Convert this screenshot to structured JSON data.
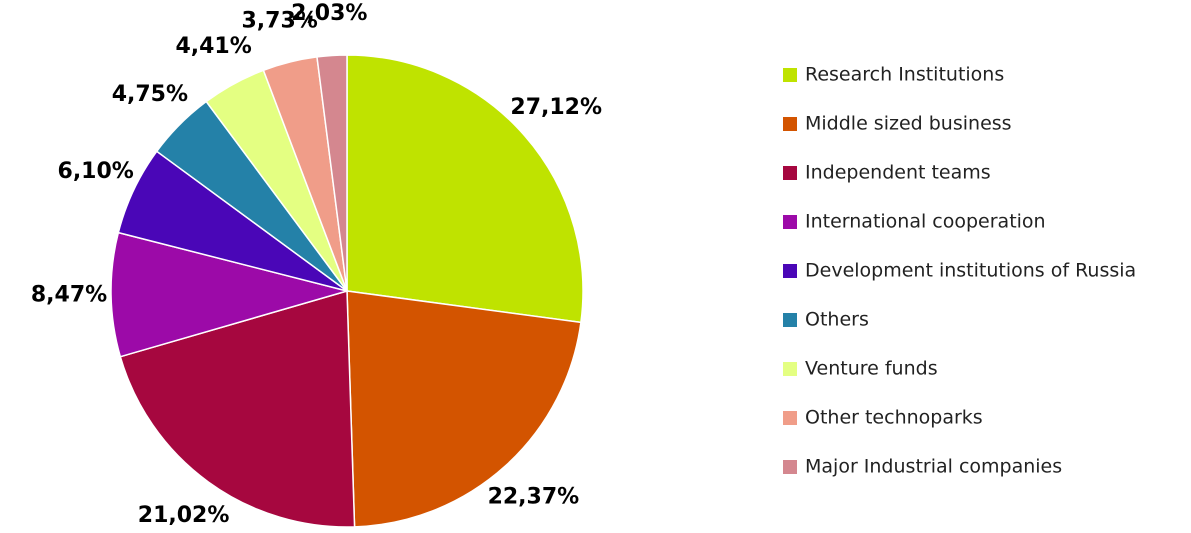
{
  "chart_data": {
    "type": "pie",
    "categories": [
      "Research Institutions",
      "Middle sized business",
      "Independent teams",
      "International cooperation",
      "Development institutions of Russia",
      "Others",
      "Venture funds",
      "Other technoparks",
      "Major Industrial companies"
    ],
    "values": [
      27.12,
      22.37,
      21.02,
      8.47,
      6.1,
      4.75,
      4.41,
      3.73,
      2.03
    ],
    "value_labels": [
      "27,12%",
      "22,37%",
      "21,02%",
      "8,47%",
      "6,10%",
      "4,75%",
      "4,41%",
      "3,73%",
      "2,03%"
    ],
    "colors": [
      "#bfe300",
      "#d35400",
      "#a6073f",
      "#9c0aa8",
      "#4a06b7",
      "#2481a8",
      "#e4ff82",
      "#f09d89",
      "#d4878f"
    ],
    "legend": "right"
  }
}
